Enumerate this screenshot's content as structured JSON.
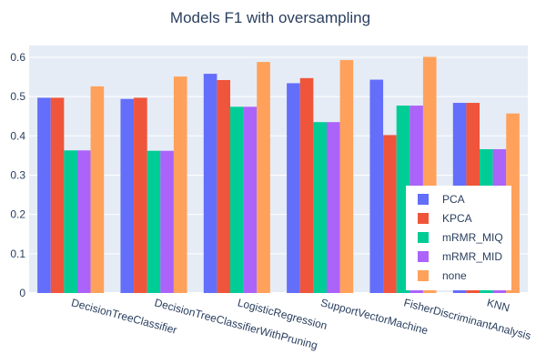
{
  "chart_data": {
    "type": "bar",
    "title": "Models F1 with oversampling",
    "xlabel": "",
    "ylabel": "",
    "ylim": [
      0,
      0.63
    ],
    "yticks": [
      0,
      0.1,
      0.2,
      0.3,
      0.4,
      0.5,
      0.6
    ],
    "ytick_labels": [
      "0",
      "0.1",
      "0.2",
      "0.3",
      "0.4",
      "0.5",
      "0.6"
    ],
    "grid": true,
    "legend_position": "bottom-right inside plot",
    "categories": [
      "DecisionTreeClassifier",
      "DecisionTreeClassifierWithPruning",
      "LogisticRegression",
      "SupportVectorMachine",
      "FisherDiscriminantAnalysis",
      "KNN"
    ],
    "series": [
      {
        "name": "PCA",
        "color": "#636efa",
        "values": [
          0.497,
          0.494,
          0.558,
          0.534,
          0.543,
          0.484
        ]
      },
      {
        "name": "KPCA",
        "color": "#ef553b",
        "values": [
          0.497,
          0.497,
          0.542,
          0.547,
          0.402,
          0.484
        ]
      },
      {
        "name": "mRMR_MIQ",
        "color": "#00cc96",
        "values": [
          0.363,
          0.362,
          0.474,
          0.435,
          0.477,
          0.366
        ]
      },
      {
        "name": "mRMR_MID",
        "color": "#ab63fa",
        "values": [
          0.363,
          0.362,
          0.474,
          0.435,
          0.477,
          0.366
        ]
      },
      {
        "name": "none",
        "color": "#ffa15a",
        "values": [
          0.526,
          0.551,
          0.588,
          0.593,
          0.601,
          0.457
        ]
      }
    ]
  },
  "colors": {
    "plot_background": "#e5ecf6",
    "grid": "#ffffff",
    "text": "#2a3f5f"
  }
}
